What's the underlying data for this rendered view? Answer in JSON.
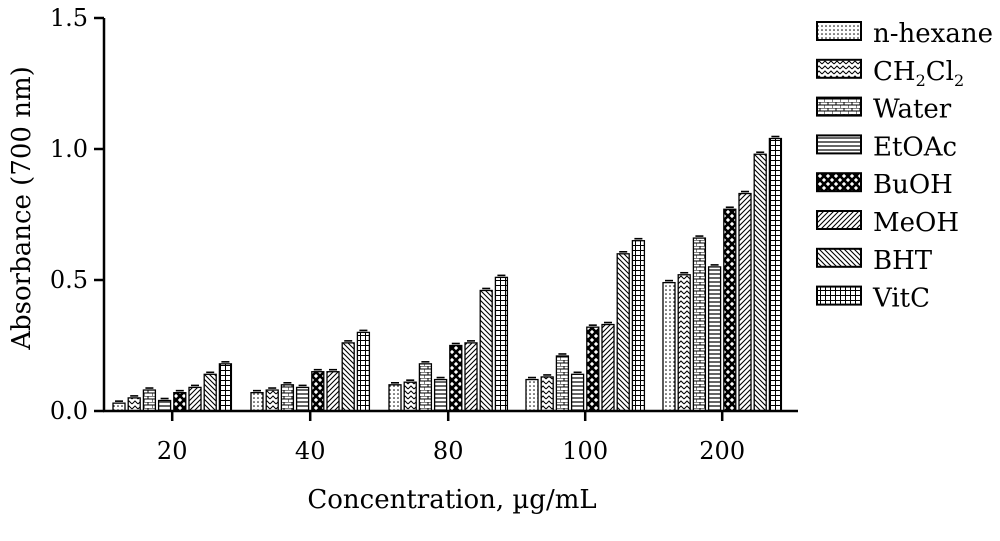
{
  "chart_data": {
    "type": "bar",
    "xlabel": "Concentration, µg/mL",
    "ylabel": "Absorbance (700 nm)",
    "ylim": [
      0,
      1.5
    ],
    "yticks": [
      "0.0",
      "0.5",
      "1.0",
      "1.5"
    ],
    "ytick_values": [
      0,
      0.5,
      1.0,
      1.5
    ],
    "categories": [
      "20",
      "40",
      "80",
      "100",
      "200"
    ],
    "legend_position": "right",
    "series": [
      {
        "name": "n-hexane",
        "pattern": "dots",
        "values": [
          0.03,
          0.07,
          0.1,
          0.12,
          0.49
        ]
      },
      {
        "name": "CH2Cl2",
        "name_main": "CH",
        "name_sub1": "2",
        "name_mid": "Cl",
        "name_sub2": "2",
        "pattern": "zigzag",
        "values": [
          0.05,
          0.08,
          0.11,
          0.13,
          0.52
        ]
      },
      {
        "name": "Water",
        "pattern": "brick",
        "values": [
          0.08,
          0.1,
          0.18,
          0.21,
          0.66
        ]
      },
      {
        "name": "EtOAc",
        "pattern": "hlines",
        "values": [
          0.04,
          0.09,
          0.12,
          0.14,
          0.55
        ]
      },
      {
        "name": "BuOH",
        "pattern": "cross",
        "values": [
          0.07,
          0.15,
          0.25,
          0.32,
          0.77
        ]
      },
      {
        "name": "MeOH",
        "pattern": "diag-fwd",
        "values": [
          0.09,
          0.15,
          0.26,
          0.33,
          0.83
        ]
      },
      {
        "name": "BHT",
        "pattern": "diag-back",
        "values": [
          0.14,
          0.26,
          0.46,
          0.6,
          0.98
        ]
      },
      {
        "name": "VitC",
        "pattern": "grid",
        "values": [
          0.18,
          0.3,
          0.51,
          0.65,
          1.04
        ]
      }
    ]
  }
}
